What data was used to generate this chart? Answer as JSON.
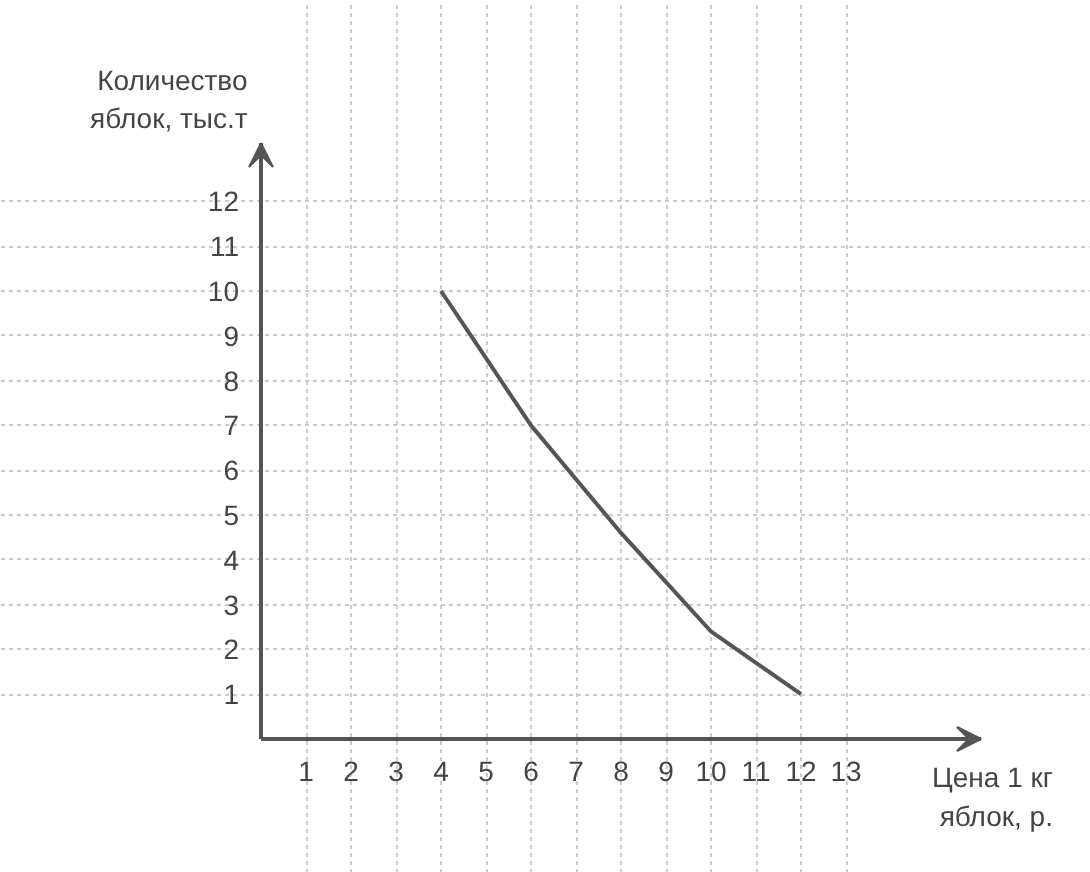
{
  "chart_data": {
    "type": "line",
    "xlabel": "Цена 1 кг\nяблок, р.",
    "ylabel": "Количество\nяблок, тыс.т",
    "x": [
      4,
      5,
      6,
      7,
      8,
      9,
      10,
      11,
      12
    ],
    "series": [
      {
        "color": "#555555",
        "values": [
          10,
          8.5,
          7,
          5.8,
          4.6,
          3.5,
          2.4,
          1.7,
          1
        ]
      }
    ],
    "xlim": [
      0,
      16
    ],
    "ylim": [
      0,
      13.3
    ],
    "xticks": [
      1,
      2,
      3,
      4,
      5,
      6,
      7,
      8,
      9,
      10,
      11,
      12,
      13
    ],
    "yticks": [
      1,
      2,
      3,
      4,
      5,
      6,
      7,
      8,
      9,
      10,
      11,
      12
    ],
    "grid": true,
    "marker": "none",
    "line_style": "solid"
  }
}
